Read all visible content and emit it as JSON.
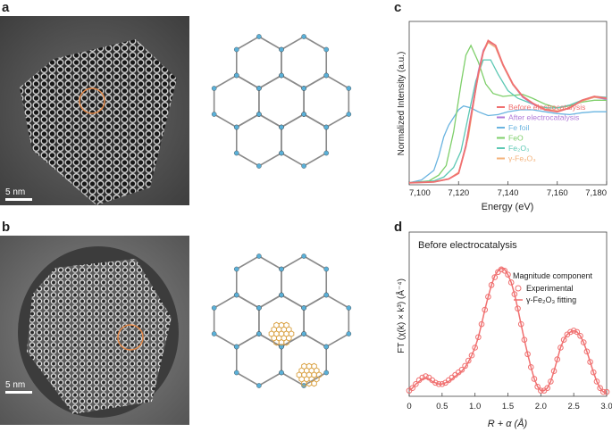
{
  "panels": {
    "a": {
      "letter": "a",
      "scale_label": "5 nm"
    },
    "b": {
      "letter": "b",
      "scale_label": "5 nm"
    },
    "c": {
      "letter": "c"
    },
    "d": {
      "letter": "d"
    }
  },
  "colors": {
    "before": "#f07070",
    "after": "#b07ad8",
    "fe_foil": "#6ab4e0",
    "feo": "#7ecf6a",
    "fe2o3_alpha": "#5cc8b4",
    "fe2o3_gamma": "#f4b27a",
    "highlight": "#e48a4a",
    "framework": "#8a8a8a",
    "node": "#5ab0d8"
  },
  "chart_data": [
    {
      "type": "line",
      "panel": "c",
      "xlabel": "Energy (eV)",
      "ylabel": "Normalized Intensity (a.u.)",
      "xlim": [
        7100,
        7180
      ],
      "ylim": [
        0,
        1.7
      ],
      "xticks": [
        "7,100",
        "7,120",
        "7,140",
        "7,160",
        "7,180"
      ],
      "legend": [
        "Before electrocatalysis",
        "After electrocatalysis",
        "Fe foil",
        "FeO",
        "Fe₂O₃",
        "γ-Fe₂O₃"
      ],
      "series": [
        {
          "name": "Before electrocatalysis",
          "x": [
            7100,
            7110,
            7116,
            7120,
            7123,
            7126,
            7128,
            7130,
            7132,
            7135,
            7138,
            7142,
            7146,
            7150,
            7155,
            7160,
            7165,
            7170,
            7175,
            7180
          ],
          "y": [
            0.02,
            0.03,
            0.06,
            0.12,
            0.4,
            0.85,
            1.15,
            1.38,
            1.5,
            1.45,
            1.25,
            1.05,
            0.92,
            0.85,
            0.78,
            0.76,
            0.8,
            0.88,
            0.92,
            0.9
          ]
        },
        {
          "name": "After electrocatalysis",
          "x": [
            7100,
            7110,
            7116,
            7120,
            7123,
            7126,
            7128,
            7130,
            7132,
            7135,
            7138,
            7142,
            7146,
            7150,
            7155,
            7160,
            7165,
            7170,
            7175,
            7180
          ],
          "y": [
            0.02,
            0.03,
            0.06,
            0.12,
            0.42,
            0.88,
            1.18,
            1.4,
            1.49,
            1.43,
            1.24,
            1.04,
            0.91,
            0.84,
            0.78,
            0.76,
            0.8,
            0.87,
            0.91,
            0.89
          ]
        },
        {
          "name": "Fe foil",
          "x": [
            7100,
            7105,
            7110,
            7112,
            7114,
            7116,
            7118,
            7120,
            7122,
            7125,
            7128,
            7132,
            7136,
            7140,
            7145,
            7150,
            7155,
            7160,
            7165,
            7170,
            7175,
            7180
          ],
          "y": [
            0.02,
            0.05,
            0.15,
            0.3,
            0.5,
            0.62,
            0.7,
            0.78,
            0.82,
            0.8,
            0.76,
            0.72,
            0.73,
            0.76,
            0.78,
            0.78,
            0.76,
            0.74,
            0.73,
            0.75,
            0.76,
            0.76
          ]
        },
        {
          "name": "FeO",
          "x": [
            7100,
            7108,
            7112,
            7115,
            7118,
            7121,
            7123,
            7125,
            7128,
            7131,
            7134,
            7138,
            7142,
            7146,
            7150,
            7155,
            7160,
            7165,
            7170,
            7175,
            7180
          ],
          "y": [
            0.02,
            0.04,
            0.1,
            0.2,
            0.55,
            1.05,
            1.35,
            1.45,
            1.28,
            1.05,
            0.95,
            0.92,
            0.93,
            0.94,
            0.9,
            0.84,
            0.8,
            0.82,
            0.86,
            0.88,
            0.88
          ]
        },
        {
          "name": "Fe₂O₃",
          "x": [
            7100,
            7110,
            7114,
            7118,
            7121,
            7124,
            7127,
            7130,
            7133,
            7136,
            7140,
            7144,
            7148,
            7152,
            7156,
            7160,
            7165,
            7170,
            7175,
            7180
          ],
          "y": [
            0.02,
            0.04,
            0.08,
            0.18,
            0.35,
            0.72,
            1.08,
            1.3,
            1.3,
            1.15,
            0.98,
            0.9,
            0.86,
            0.82,
            0.8,
            0.8,
            0.83,
            0.88,
            0.92,
            0.91
          ]
        },
        {
          "name": "γ-Fe₂O₃",
          "x": [
            7100,
            7110,
            7116,
            7120,
            7124,
            7127,
            7130,
            7132,
            7135,
            7138,
            7142,
            7146,
            7150,
            7155,
            7160,
            7165,
            7170,
            7175,
            7180
          ],
          "y": [
            0.02,
            0.03,
            0.06,
            0.13,
            0.5,
            1.0,
            1.38,
            1.48,
            1.43,
            1.24,
            1.04,
            0.92,
            0.85,
            0.79,
            0.77,
            0.8,
            0.87,
            0.91,
            0.9
          ]
        }
      ]
    },
    {
      "type": "line",
      "panel": "d",
      "title": "Before electrocatalysis",
      "legend_title": "Magnitude component",
      "xlabel": "R + α (Å)",
      "ylabel": "FT (χ(k) × k³) (Å⁻⁴)",
      "xlim": [
        0,
        3.0
      ],
      "ylim": [
        0,
        1.0
      ],
      "xticks": [
        "0",
        "0.5",
        "1.0",
        "1.5",
        "2.0",
        "2.5",
        "3.0"
      ],
      "series": [
        {
          "name": "Experimental",
          "style": "markers",
          "x": [
            0.0,
            0.05,
            0.1,
            0.15,
            0.2,
            0.25,
            0.3,
            0.35,
            0.4,
            0.45,
            0.5,
            0.55,
            0.6,
            0.65,
            0.7,
            0.75,
            0.8,
            0.85,
            0.9,
            0.95,
            1.0,
            1.05,
            1.1,
            1.15,
            1.2,
            1.25,
            1.3,
            1.35,
            1.4,
            1.45,
            1.5,
            1.55,
            1.6,
            1.65,
            1.7,
            1.75,
            1.8,
            1.85,
            1.9,
            1.95,
            2.0,
            2.05,
            2.1,
            2.15,
            2.2,
            2.25,
            2.3,
            2.35,
            2.4,
            2.45,
            2.5,
            2.55,
            2.6,
            2.65,
            2.7,
            2.75,
            2.8,
            2.85,
            2.9,
            2.95,
            3.0
          ],
          "y": [
            0.03,
            0.05,
            0.08,
            0.11,
            0.13,
            0.14,
            0.13,
            0.11,
            0.09,
            0.08,
            0.08,
            0.09,
            0.11,
            0.13,
            0.15,
            0.17,
            0.19,
            0.22,
            0.26,
            0.3,
            0.36,
            0.44,
            0.54,
            0.65,
            0.75,
            0.84,
            0.9,
            0.94,
            0.96,
            0.95,
            0.92,
            0.86,
            0.77,
            0.66,
            0.54,
            0.42,
            0.31,
            0.21,
            0.12,
            0.06,
            0.03,
            0.03,
            0.05,
            0.1,
            0.18,
            0.27,
            0.36,
            0.42,
            0.46,
            0.48,
            0.49,
            0.48,
            0.45,
            0.4,
            0.33,
            0.25,
            0.17,
            0.1,
            0.05,
            0.02,
            0.02
          ]
        },
        {
          "name": "γ-Fe₂O₃ fitting",
          "style": "line",
          "x": [
            0.0,
            0.05,
            0.1,
            0.15,
            0.2,
            0.25,
            0.3,
            0.35,
            0.4,
            0.45,
            0.5,
            0.55,
            0.6,
            0.65,
            0.7,
            0.75,
            0.8,
            0.85,
            0.9,
            0.95,
            1.0,
            1.05,
            1.1,
            1.15,
            1.2,
            1.25,
            1.3,
            1.35,
            1.4,
            1.45,
            1.5,
            1.55,
            1.6,
            1.65,
            1.7,
            1.75,
            1.8,
            1.85,
            1.9,
            1.95,
            2.0,
            2.05,
            2.1,
            2.15,
            2.2,
            2.25,
            2.3,
            2.35,
            2.4,
            2.45,
            2.5,
            2.55,
            2.6,
            2.65,
            2.7,
            2.75,
            2.8,
            2.85,
            2.9,
            2.95,
            3.0
          ],
          "y": [
            0.03,
            0.05,
            0.08,
            0.1,
            0.12,
            0.13,
            0.12,
            0.1,
            0.09,
            0.08,
            0.08,
            0.09,
            0.1,
            0.12,
            0.14,
            0.16,
            0.18,
            0.21,
            0.25,
            0.3,
            0.36,
            0.44,
            0.54,
            0.65,
            0.75,
            0.84,
            0.91,
            0.95,
            0.97,
            0.96,
            0.92,
            0.86,
            0.77,
            0.66,
            0.54,
            0.42,
            0.31,
            0.21,
            0.12,
            0.06,
            0.03,
            0.03,
            0.05,
            0.1,
            0.18,
            0.27,
            0.36,
            0.42,
            0.46,
            0.48,
            0.49,
            0.48,
            0.45,
            0.4,
            0.33,
            0.25,
            0.17,
            0.1,
            0.05,
            0.02,
            0.02
          ]
        }
      ]
    }
  ]
}
